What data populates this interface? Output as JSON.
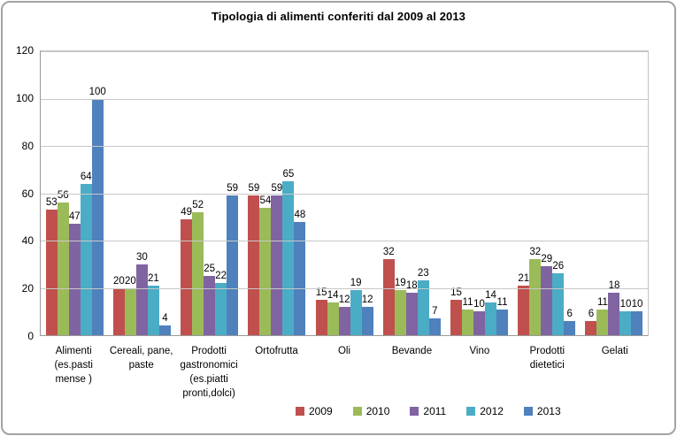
{
  "frame": {
    "background": "#ffffff",
    "border_color": "#a3a3a3"
  },
  "chart_data": {
    "type": "bar",
    "title": "Tipologia di alimenti conferiti dal 2009 al 2013",
    "categories": [
      "Alimenti (es.pasti mense )",
      "Cereali, pane, paste",
      "Prodotti gastronomici (es.piatti pronti,dolci)",
      "Ortofrutta",
      "Oli",
      "Bevande",
      "Vino",
      "Prodotti dietetici",
      "Gelati"
    ],
    "categories_display_lines": [
      [
        "Alimenti",
        "(es.pasti",
        "mense )"
      ],
      [
        "Cereali, pane,",
        "paste"
      ],
      [
        "Prodotti",
        "gastronomici",
        "(es.piatti",
        "pronti,dolci)"
      ],
      [
        "Ortofrutta"
      ],
      [
        "Oli"
      ],
      [
        "Bevande"
      ],
      [
        "Vino"
      ],
      [
        "Prodotti",
        "dietetici"
      ],
      [
        "Gelati"
      ]
    ],
    "series": [
      {
        "name": "2009",
        "color": "#C0504D",
        "values": [
          53,
          20,
          49,
          59,
          15,
          32,
          15,
          21,
          6
        ]
      },
      {
        "name": "2010",
        "color": "#9BBB59",
        "values": [
          56,
          20,
          52,
          54,
          14,
          19,
          11,
          32,
          11
        ]
      },
      {
        "name": "2011",
        "color": "#8064A2",
        "values": [
          47,
          30,
          25,
          59,
          12,
          18,
          10,
          29,
          18
        ]
      },
      {
        "name": "2012",
        "color": "#4BACC6",
        "values": [
          64,
          21,
          22,
          65,
          19,
          23,
          14,
          26,
          10
        ]
      },
      {
        "name": "2013",
        "color": "#4F81BD",
        "values": [
          100,
          4,
          59,
          48,
          12,
          7,
          11,
          6,
          10
        ]
      }
    ],
    "ylim": [
      0,
      120
    ],
    "yticks": [
      0,
      20,
      40,
      60,
      80,
      100,
      120
    ],
    "grid": true,
    "data_labels": true,
    "legend_position": "bottom",
    "gridline_color": "#c8c8c8",
    "axis_line_color": "#9a9a9a"
  }
}
